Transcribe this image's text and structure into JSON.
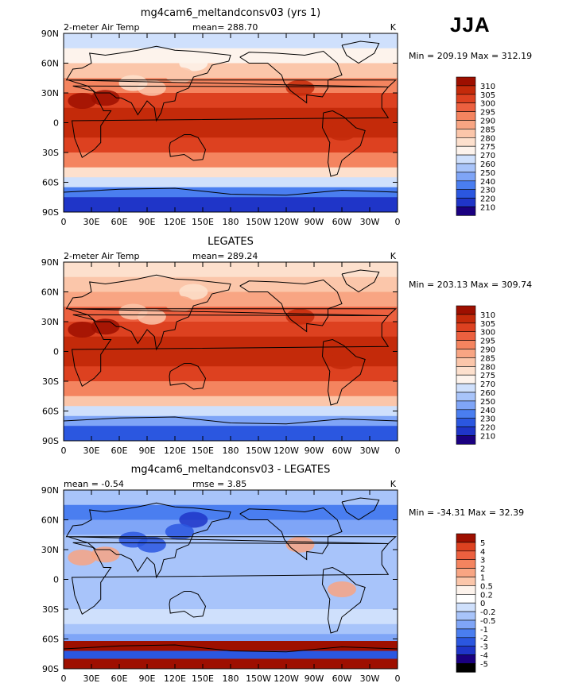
{
  "season": "JJA",
  "colors": {
    "abs_scale": [
      "#1a0080",
      "#1f35c8",
      "#2b57e0",
      "#4a7ef0",
      "#7fa5f7",
      "#a8c4fa",
      "#cfe0fc",
      "#fdf3ec",
      "#fde0cd",
      "#fbc6aa",
      "#f8a583",
      "#f4845f",
      "#ec603f",
      "#dd4120",
      "#c42a0a",
      "#9e0f00"
    ],
    "diff_scale": [
      "#1a0080",
      "#1f35c8",
      "#2b57e0",
      "#4a7ef0",
      "#7fa5f7",
      "#a8c4fa",
      "#cfe0fc",
      "#ffffff",
      "#fdf3ec",
      "#fbc6aa",
      "#f8a583",
      "#f4845f",
      "#ec603f",
      "#dd4120",
      "#9e0f00"
    ],
    "land_outline": "#000000"
  },
  "chart_data": [
    {
      "type": "heatmap",
      "title": "mg4cam6_meltandconsv03 (yrs 1)",
      "left_label": "2-meter Air Temp",
      "stat_label": "mean= 288.70",
      "units": "K",
      "minmax": "Min = 209.19 Max = 312.19",
      "xticks": [
        "0",
        "30E",
        "60E",
        "90E",
        "120E",
        "150E",
        "180",
        "150W",
        "120W",
        "90W",
        "60W",
        "30W",
        "0"
      ],
      "yticks": [
        "90N",
        "60N",
        "30N",
        "0",
        "30S",
        "60S",
        "90S"
      ],
      "xlim": [
        0,
        360
      ],
      "ylim": [
        -90,
        90
      ],
      "colorbar_levels": [
        "310",
        "305",
        "300",
        "295",
        "290",
        "285",
        "280",
        "275",
        "270",
        "260",
        "250",
        "240",
        "230",
        "220",
        "210"
      ],
      "zonal_profile": [
        {
          "lat": 90,
          "level": 6
        },
        {
          "lat": 75,
          "level": 7
        },
        {
          "lat": 60,
          "level": 9
        },
        {
          "lat": 45,
          "level": 11
        },
        {
          "lat": 30,
          "level": 13
        },
        {
          "lat": 15,
          "level": 14
        },
        {
          "lat": 0,
          "level": 14
        },
        {
          "lat": -15,
          "level": 13
        },
        {
          "lat": -30,
          "level": 11
        },
        {
          "lat": -45,
          "level": 8
        },
        {
          "lat": -55,
          "level": 6
        },
        {
          "lat": -65,
          "level": 3
        },
        {
          "lat": -75,
          "level": 1
        },
        {
          "lat": -90,
          "level": 0
        }
      ]
    },
    {
      "type": "heatmap",
      "title": "LEGATES",
      "left_label": "2-meter Air Temp",
      "stat_label": "mean= 289.24",
      "units": "K",
      "minmax": "Min = 203.13 Max = 309.74",
      "xticks": [
        "0",
        "30E",
        "60E",
        "90E",
        "120E",
        "150E",
        "180",
        "150W",
        "120W",
        "90W",
        "60W",
        "30W",
        "0"
      ],
      "yticks": [
        "90N",
        "60N",
        "30N",
        "0",
        "30S",
        "60S",
        "90S"
      ],
      "xlim": [
        0,
        360
      ],
      "ylim": [
        -90,
        90
      ],
      "colorbar_levels": [
        "310",
        "305",
        "300",
        "295",
        "290",
        "285",
        "280",
        "275",
        "270",
        "260",
        "250",
        "240",
        "230",
        "220",
        "210"
      ],
      "zonal_profile": [
        {
          "lat": 90,
          "level": 8
        },
        {
          "lat": 75,
          "level": 9
        },
        {
          "lat": 60,
          "level": 10
        },
        {
          "lat": 45,
          "level": 12
        },
        {
          "lat": 30,
          "level": 13
        },
        {
          "lat": 15,
          "level": 14
        },
        {
          "lat": 0,
          "level": 14
        },
        {
          "lat": -15,
          "level": 13
        },
        {
          "lat": -30,
          "level": 11
        },
        {
          "lat": -45,
          "level": 9
        },
        {
          "lat": -55,
          "level": 6
        },
        {
          "lat": -65,
          "level": 4
        },
        {
          "lat": -75,
          "level": 2
        },
        {
          "lat": -90,
          "level": 0
        }
      ]
    },
    {
      "type": "heatmap",
      "title": "mg4cam6_meltandconsv03 - LEGATES",
      "left_label": "mean =   -0.54",
      "stat_label": "rmse =    3.85",
      "units": "K",
      "minmax": "Min = -34.31 Max =  32.39",
      "xticks": [
        "0",
        "30E",
        "60E",
        "90E",
        "120E",
        "150E",
        "180",
        "150W",
        "120W",
        "90W",
        "60W",
        "30W",
        "0"
      ],
      "yticks": [
        "90N",
        "60N",
        "30N",
        "0",
        "30S",
        "60S",
        "90S"
      ],
      "xlim": [
        0,
        360
      ],
      "ylim": [
        -90,
        90
      ],
      "colorbar_levels": [
        "5",
        "4",
        "3",
        "2",
        "1",
        "0.5",
        "0.2",
        "0",
        "-0.2",
        "-0.5",
        "-1",
        "-2",
        "-3",
        "-4",
        "-5"
      ],
      "zonal_profile": [
        {
          "lat": 90,
          "level": 5
        },
        {
          "lat": 75,
          "level": 3
        },
        {
          "lat": 60,
          "level": 4
        },
        {
          "lat": 45,
          "level": 5
        },
        {
          "lat": 30,
          "level": 5
        },
        {
          "lat": 15,
          "level": 5
        },
        {
          "lat": 0,
          "level": 5
        },
        {
          "lat": -15,
          "level": 5
        },
        {
          "lat": -30,
          "level": 6
        },
        {
          "lat": -45,
          "level": 5
        },
        {
          "lat": -55,
          "level": 4
        },
        {
          "lat": -62,
          "level": 14
        },
        {
          "lat": -72,
          "level": 2
        },
        {
          "lat": -80,
          "level": 14
        },
        {
          "lat": -90,
          "level": 3
        }
      ]
    }
  ]
}
